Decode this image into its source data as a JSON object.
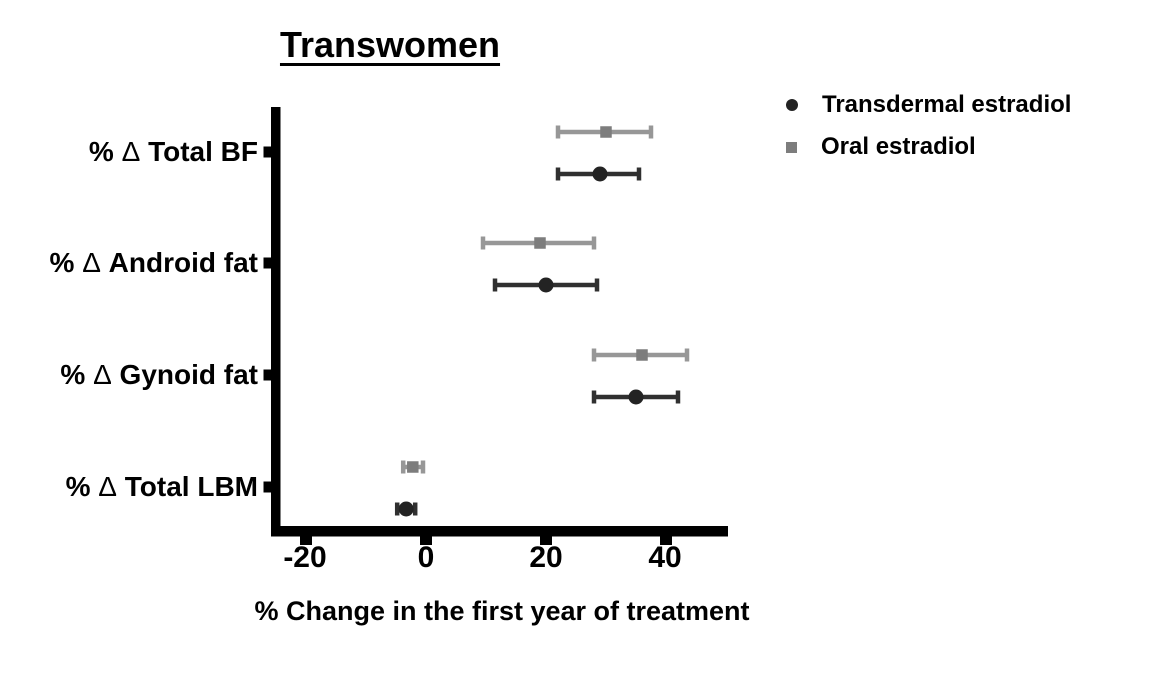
{
  "figure": {
    "background": "#ffffff",
    "text_color": "#000000",
    "axis_color": "#000000"
  },
  "chart_data": {
    "type": "scatter",
    "subtype": "horizontal dot plot with error bars (forest plot)",
    "title": "Transwomen",
    "xlabel": "% Change in the first year of treatment",
    "ylabel": "",
    "categories": [
      "% Δ Total BF",
      "% Δ Android fat",
      "% Δ Gynoid fat",
      "% Δ Total LBM"
    ],
    "x_ticks": [
      "-20",
      "0",
      "20",
      "40"
    ],
    "x_tick_values": [
      -20,
      0,
      20,
      40
    ],
    "xlim": [
      -26,
      50
    ],
    "grid": false,
    "legend_position": "top-right outside plot",
    "series": [
      {
        "name": "Transdermal estradiol",
        "marker": "circle",
        "line_color": "#303030",
        "marker_color": "#232323",
        "points": [
          {
            "category": "% Δ Total BF",
            "value": 29,
            "low": 22,
            "high": 35.5
          },
          {
            "category": "% Δ Android fat",
            "value": 20,
            "low": 11.5,
            "high": 28.5
          },
          {
            "category": "% Δ Gynoid fat",
            "value": 35,
            "low": 28,
            "high": 42
          },
          {
            "category": "% Δ Total LBM",
            "value": -3.3,
            "low": -4.8,
            "high": -1.8
          }
        ]
      },
      {
        "name": "Oral estradiol",
        "marker": "square",
        "line_color": "#979797",
        "marker_color": "#7d7d7d",
        "points": [
          {
            "category": "% Δ Total BF",
            "value": 30,
            "low": 22,
            "high": 37.5
          },
          {
            "category": "% Δ Android fat",
            "value": 19,
            "low": 9.5,
            "high": 28
          },
          {
            "category": "% Δ Gynoid fat",
            "value": 36,
            "low": 28,
            "high": 43.5
          },
          {
            "category": "% Δ Total LBM",
            "value": -2.2,
            "low": -3.8,
            "high": -0.5
          }
        ]
      }
    ]
  }
}
